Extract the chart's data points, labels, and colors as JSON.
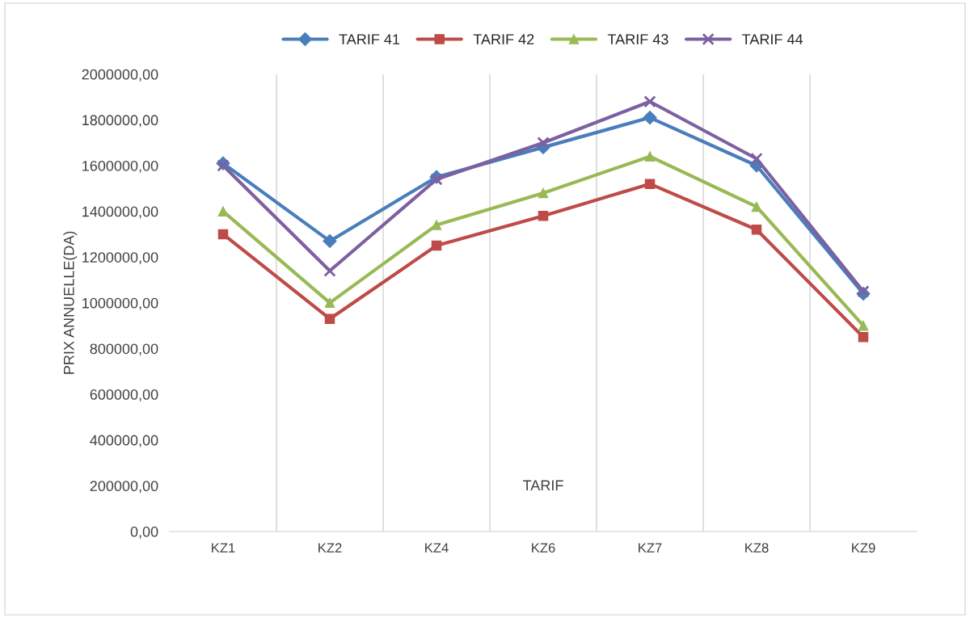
{
  "chart_data": {
    "type": "line",
    "ylabel": "PRIX ANNUELLE(DA)",
    "annotations": [
      "TARIF"
    ],
    "categories": [
      "KZ1",
      "KZ2",
      "KZ4",
      "KZ6",
      "KZ7",
      "KZ8",
      "KZ9"
    ],
    "series": [
      {
        "name": "TARIF 41",
        "color": "#4a7ebb",
        "marker": "diamond",
        "values": [
          1610000,
          1270000,
          1550000,
          1680000,
          1810000,
          1600000,
          1040000
        ]
      },
      {
        "name": "TARIF 42",
        "color": "#be4b48",
        "marker": "square",
        "values": [
          1300000,
          930000,
          1250000,
          1380000,
          1520000,
          1320000,
          850000
        ]
      },
      {
        "name": "TARIF 43",
        "color": "#98b954",
        "marker": "triangle",
        "values": [
          1400000,
          1000000,
          1340000,
          1480000,
          1640000,
          1420000,
          900000
        ]
      },
      {
        "name": "TARIF 44",
        "color": "#7d60a0",
        "marker": "cross",
        "values": [
          1600000,
          1140000,
          1540000,
          1700000,
          1880000,
          1630000,
          1050000
        ]
      }
    ],
    "ylim": [
      0,
      2000000
    ],
    "yticks": [
      {
        "value": 0,
        "label": "0,00"
      },
      {
        "value": 200000,
        "label": "200000,00"
      },
      {
        "value": 400000,
        "label": "400000,00"
      },
      {
        "value": 600000,
        "label": "600000,00"
      },
      {
        "value": 800000,
        "label": "800000,00"
      },
      {
        "value": 1000000,
        "label": "1000000,00"
      },
      {
        "value": 1200000,
        "label": "1200000,00"
      },
      {
        "value": 1400000,
        "label": "1400000,00"
      },
      {
        "value": 1600000,
        "label": "1600000,00"
      },
      {
        "value": 1800000,
        "label": "1800000,00"
      },
      {
        "value": 2000000,
        "label": "2000000,00"
      }
    ],
    "grid": "x",
    "legend": "top"
  }
}
